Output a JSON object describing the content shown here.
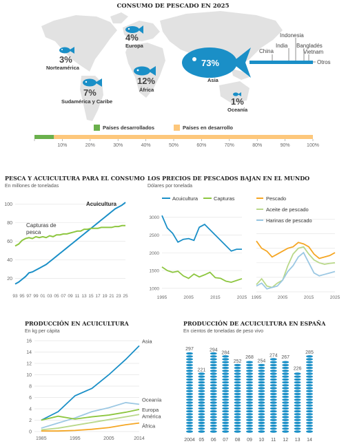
{
  "colors": {
    "blue": "#1a8fc7",
    "green": "#8dc63f",
    "orange": "#f5a623",
    "lightgreen": "#b9d88a",
    "lightblue": "#9cc8e3",
    "map": "#e3e3e3",
    "bar_dev": "#6ab04c",
    "bar_undev": "#fdc77b"
  },
  "panel1": {
    "title": "CONSUMO DE PESCADO EN 2025",
    "regions": [
      {
        "id": "europa",
        "pct": "4%",
        "label": "Europa"
      },
      {
        "id": "norteamerica",
        "pct": "3%",
        "label": "Norteamérica"
      },
      {
        "id": "africa",
        "pct": "12%",
        "label": "África"
      },
      {
        "id": "sudamerica",
        "pct": "7%",
        "label": "Sudamérica y Caribe"
      },
      {
        "id": "asia",
        "pct": "73%",
        "label": "Asia"
      },
      {
        "id": "oceania",
        "pct": "1%",
        "label": "Oceanía"
      }
    ],
    "asia_breakdown": [
      "China",
      "India",
      "Indonesia",
      "Bangladés",
      "Vietnam",
      "Otros"
    ],
    "legend": {
      "developed": "Países desarrollados",
      "developing": "Países en desarrollo"
    },
    "developed_share": 7,
    "axis_ticks": [
      "0%",
      "10%",
      "20%",
      "30%",
      "40%",
      "50%",
      "60%",
      "70%",
      "80%",
      "90%",
      "100%"
    ]
  },
  "panel2": {
    "title": "PESCA Y ACUICULTURA PARA EL CONSUMO",
    "subtitle": "En millones de toneladas",
    "annot_acu": "Acuicultura",
    "annot_cap": "Capturas de pesca"
  },
  "panel3": {
    "title": "LOS PRECIOS DE PESCADOS BAJAN EN EL MUNDO",
    "subtitle": "Dólares por tonelada",
    "legend_left": [
      "Acuicultura",
      "Capturas"
    ],
    "legend_right": [
      "Pescado",
      "Aceite de pescado",
      "Harinas de pescado"
    ]
  },
  "panel4": {
    "title": "PRODUCCIÓN EN ACUICULTURA",
    "subtitle": "En kg per cápita"
  },
  "panel5": {
    "title": "PRODUCCIÓN DE ACUICULTURA EN ESPAÑA",
    "subtitle": "En cientos de toneladas de peso vivo"
  },
  "chart_data": [
    {
      "type": "line",
      "title": "PESCA Y ACUICULTURA PARA EL CONSUMO",
      "ylabel": "En millones de toneladas",
      "x": [
        1993,
        1994,
        1995,
        1996,
        1997,
        1998,
        1999,
        2000,
        2001,
        2002,
        2003,
        2004,
        2005,
        2006,
        2007,
        2008,
        2009,
        2010,
        2011,
        2012,
        2013,
        2014,
        2015,
        2016,
        2017,
        2018,
        2019,
        2020,
        2021,
        2022,
        2023,
        2024,
        2025
      ],
      "xtick_labels": [
        "93",
        "95",
        "97",
        "99",
        "01",
        "03",
        "05",
        "07",
        "09",
        "11",
        "13",
        "15",
        "17",
        "19",
        "21",
        "23",
        "25"
      ],
      "yticks": [
        20,
        40,
        60,
        80,
        100
      ],
      "ylim": [
        10,
        105
      ],
      "series": [
        {
          "name": "Acuicultura",
          "values": [
            14,
            16,
            19,
            22,
            26,
            27,
            29,
            31,
            33,
            35,
            38,
            41,
            44,
            47,
            50,
            53,
            56,
            59,
            62,
            65,
            68,
            71,
            74,
            77,
            80,
            83,
            86,
            89,
            92,
            95,
            97,
            99,
            102
          ]
        },
        {
          "name": "Capturas de pesca",
          "values": [
            55,
            57,
            61,
            63,
            64,
            63,
            65,
            64,
            65,
            64,
            66,
            65,
            67,
            67,
            68,
            68,
            69,
            70,
            71,
            71,
            73,
            73,
            74,
            74,
            74,
            75,
            75,
            75,
            75,
            76,
            76,
            77,
            77
          ]
        }
      ]
    },
    {
      "type": "line",
      "title": "LOS PRECIOS DE PESCADOS BAJAN EN EL MUNDO",
      "ylabel": "Dólares por tonelada",
      "x": [
        1995,
        1997,
        1999,
        2001,
        2003,
        2005,
        2007,
        2009,
        2011,
        2013,
        2015,
        2017,
        2019,
        2021,
        2023,
        2025
      ],
      "xtick_labels": [
        "1995",
        "2005",
        "2015",
        "2025"
      ],
      "yticks": [
        1000,
        1500,
        2000,
        2500,
        3000
      ],
      "ylim": [
        900,
        3150
      ],
      "series": [
        {
          "name": "Acuicultura",
          "values": [
            3050,
            2700,
            2550,
            2300,
            2380,
            2400,
            2350,
            2720,
            2800,
            2650,
            2500,
            2350,
            2200,
            2050,
            2100,
            2100
          ]
        },
        {
          "name": "Capturas",
          "values": [
            1600,
            1500,
            1450,
            1480,
            1350,
            1280,
            1400,
            1320,
            1380,
            1450,
            1300,
            1280,
            1200,
            1170,
            1220,
            1270
          ]
        }
      ]
    },
    {
      "type": "line",
      "x": [
        1995,
        1997,
        1999,
        2001,
        2003,
        2005,
        2007,
        2009,
        2011,
        2013,
        2015,
        2017,
        2019,
        2021,
        2023,
        2025
      ],
      "xtick_labels": [
        "1995",
        "2005",
        "2015",
        "2025"
      ],
      "series": [
        {
          "name": "Pescado",
          "values": [
            2150,
            1900,
            1800,
            1600,
            1700,
            1800,
            1900,
            1950,
            2100,
            2050,
            1950,
            1700,
            1550,
            1600,
            1650,
            1750
          ]
        },
        {
          "name": "Aceite de pescado",
          "values": [
            650,
            850,
            600,
            550,
            700,
            800,
            1300,
            1700,
            1900,
            1950,
            1700,
            1500,
            1400,
            1350,
            1380,
            1400
          ]
        },
        {
          "name": "Harinas de pescado",
          "values": [
            600,
            700,
            500,
            550,
            600,
            800,
            1100,
            1300,
            1600,
            1750,
            1400,
            1050,
            950,
            1000,
            1050,
            1100
          ]
        }
      ]
    },
    {
      "type": "line",
      "title": "PRODUCCIÓN EN ACUICULTURA",
      "ylabel": "En kg per cápita",
      "x": [
        1985,
        1990,
        1995,
        2000,
        2005,
        2010,
        2014
      ],
      "xtick_labels": [
        "1985",
        "1995",
        "2005",
        "2014"
      ],
      "yticks": [
        0,
        2,
        4,
        6,
        8,
        10,
        12,
        14,
        16
      ],
      "ylim": [
        0,
        16
      ],
      "series": [
        {
          "name": "Asia",
          "values": [
            2.0,
            3.5,
            6.3,
            7.6,
            10.0,
            12.7,
            15.1
          ]
        },
        {
          "name": "Oceanía",
          "values": [
            0.6,
            1.5,
            2.4,
            3.5,
            4.2,
            5.1,
            4.8
          ]
        },
        {
          "name": "Europa",
          "values": [
            2.0,
            2.7,
            2.2,
            2.6,
            2.9,
            3.4,
            3.9
          ]
        },
        {
          "name": "América",
          "values": [
            0.3,
            0.6,
            1.1,
            1.6,
            2.1,
            2.6,
            3.0
          ]
        },
        {
          "name": "África",
          "values": [
            0.1,
            0.1,
            0.2,
            0.4,
            0.7,
            1.2,
            1.5
          ]
        }
      ]
    },
    {
      "type": "bar",
      "title": "PRODUCCIÓN DE ACUICULTURA EN ESPAÑA",
      "ylabel": "En cientos de toneladas de peso vivo",
      "categories": [
        "2004",
        "05",
        "06",
        "07",
        "08",
        "09",
        "10",
        "11",
        "12",
        "13",
        "14"
      ],
      "values": [
        297,
        221,
        294,
        284,
        252,
        268,
        254,
        274,
        267,
        226,
        285
      ]
    }
  ]
}
